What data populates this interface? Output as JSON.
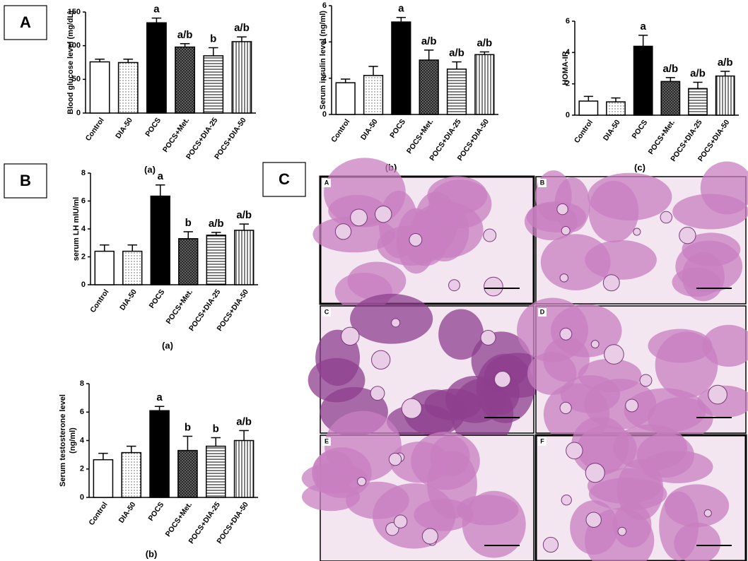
{
  "chart_data": [
    {
      "type": "bar",
      "y_label": [
        "Blood glucose level (mg/dL)"
      ],
      "caption": "(a)",
      "categories": [
        "Control",
        "DIA-50",
        "POCS",
        "POCS+Met.",
        "POCS+DIA-25",
        "POCS+DIA-50"
      ],
      "values": [
        76,
        75,
        134,
        98,
        85,
        106
      ],
      "errors": [
        4,
        5,
        7,
        5,
        12,
        7
      ],
      "significance": [
        null,
        null,
        "a",
        "a/b",
        "b",
        "a/b"
      ],
      "fills": [
        "white",
        "dots",
        "black",
        "crosshatch",
        "hlines",
        "vlines"
      ],
      "color": "#000000",
      "ylim": [
        0,
        150
      ],
      "yticks": [
        0,
        50,
        100,
        150
      ]
    },
    {
      "type": "bar",
      "y_label": [
        "Serum insulin level (ng/ml)"
      ],
      "caption": "(b)",
      "categories": [
        "Control",
        "DIA-50",
        "POCS",
        "POCS+Met.",
        "POCS+DIA-25",
        "POCS+DIA-50"
      ],
      "values": [
        1.75,
        2.15,
        5.1,
        3.0,
        2.5,
        3.3
      ],
      "errors": [
        0.2,
        0.5,
        0.25,
        0.55,
        0.4,
        0.15
      ],
      "significance": [
        null,
        null,
        "a",
        "a/b",
        "a/b",
        "a/b"
      ],
      "fills": [
        "white",
        "dots",
        "black",
        "crosshatch",
        "hlines",
        "vlines"
      ],
      "color": "#000000",
      "ylim": [
        0,
        6
      ],
      "yticks": [
        0,
        2,
        4,
        6
      ]
    },
    {
      "type": "bar",
      "y_label": [
        "HOMA-IR"
      ],
      "caption": "(c)",
      "categories": [
        "Control",
        "DIA-50",
        "POCS",
        "POCS+Met.",
        "POCS+DIA-25",
        "POCS+DIA-50"
      ],
      "values": [
        0.9,
        0.85,
        4.4,
        2.15,
        1.7,
        2.5
      ],
      "errors": [
        0.3,
        0.25,
        0.7,
        0.25,
        0.4,
        0.3
      ],
      "significance": [
        null,
        null,
        "a",
        "a/b",
        "a/b",
        "a/b"
      ],
      "fills": [
        "white",
        "dots",
        "black",
        "crosshatch",
        "hlines",
        "vlines"
      ],
      "color": "#000000",
      "ylim": [
        0,
        6
      ],
      "yticks": [
        0,
        2,
        4,
        6
      ]
    },
    {
      "type": "bar",
      "y_label": [
        "serum LH mIU/ml"
      ],
      "caption": "(a)",
      "categories": [
        "Control",
        "DIA-50",
        "POCS",
        "POCS+Met.",
        "POCS+DIA-25",
        "POCS+DIA-50"
      ],
      "values": [
        2.4,
        2.4,
        6.35,
        3.3,
        3.55,
        3.9
      ],
      "errors": [
        0.45,
        0.45,
        0.8,
        0.5,
        0.2,
        0.45
      ],
      "significance": [
        null,
        null,
        "a",
        "b",
        "a/b",
        "a/b"
      ],
      "fills": [
        "white",
        "dots",
        "black",
        "crosshatch",
        "hlines",
        "vlines"
      ],
      "color": "#000000",
      "ylim": [
        0,
        8
      ],
      "yticks": [
        0,
        2,
        4,
        6,
        8
      ]
    },
    {
      "type": "bar",
      "y_label": [
        "Serum testosterone level",
        "(ng/ml)"
      ],
      "caption": "(b)",
      "categories": [
        "Control",
        "DIA-50",
        "POCS",
        "POCS+Met.",
        "POCS+DIA-25",
        "POCS+DIA-50"
      ],
      "values": [
        2.65,
        3.15,
        6.1,
        3.3,
        3.6,
        4.0
      ],
      "errors": [
        0.45,
        0.45,
        0.3,
        1.0,
        0.6,
        0.7
      ],
      "significance": [
        null,
        null,
        "a",
        "b",
        "b",
        "a/b"
      ],
      "fills": [
        "white",
        "dots",
        "black",
        "crosshatch",
        "hlines",
        "vlines"
      ],
      "color": "#000000",
      "ylim": [
        0,
        8
      ],
      "yticks": [
        0,
        2,
        4,
        6,
        8
      ]
    }
  ],
  "panel_labels": [
    "A",
    "B",
    "C"
  ],
  "histology": {
    "panels": [
      "A",
      "B",
      "C",
      "D",
      "E",
      "F"
    ]
  }
}
